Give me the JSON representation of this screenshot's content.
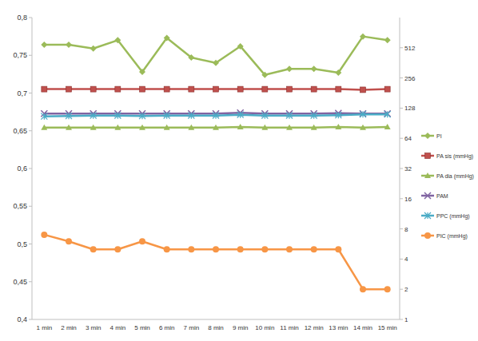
{
  "chart_data": {
    "type": "line",
    "categories": [
      "1 min",
      "2 min",
      "3 min",
      "4 min",
      "5 min",
      "6 min",
      "7 min",
      "8 min",
      "9 min",
      "10 min",
      "11 min",
      "12 min",
      "13 min",
      "14 min",
      "15 min"
    ],
    "ylim": [
      0.4,
      0.8
    ],
    "yticks": [
      {
        "value": 0.4,
        "label": "0,4"
      },
      {
        "value": 0.45,
        "label": "0,45"
      },
      {
        "value": 0.5,
        "label": "0,5"
      },
      {
        "value": 0.55,
        "label": "0,55"
      },
      {
        "value": 0.6,
        "label": "0,6"
      },
      {
        "value": 0.65,
        "label": "0,65"
      },
      {
        "value": 0.7,
        "label": "0,7"
      },
      {
        "value": 0.75,
        "label": "0,75"
      },
      {
        "value": 0.8,
        "label": "0,8"
      }
    ],
    "y2lim": [
      1,
      1024
    ],
    "y2ticks": [
      1,
      2,
      4,
      8,
      16,
      32,
      64,
      128,
      256,
      512
    ],
    "log": "y2",
    "grid": false,
    "legend": "right",
    "series": [
      {
        "name": "PI",
        "color": "#9bbb59",
        "marker": "diamond",
        "values": [
          0.764,
          0.764,
          0.759,
          0.77,
          0.728,
          0.773,
          0.747,
          0.74,
          0.762,
          0.724,
          0.732,
          0.732,
          0.727,
          0.775,
          0.77
        ]
      },
      {
        "name": "PA sis (mmHg)",
        "color": "#c0504d",
        "marker": "square",
        "axis": "y2",
        "values": [
          198,
          198,
          198,
          198,
          198,
          198,
          198,
          198,
          198,
          198,
          198,
          198,
          198,
          195,
          198
        ]
      },
      {
        "name": "PA dia (mmHg)",
        "color": "#9bbb59",
        "marker": "triangle",
        "axis": "y2",
        "values": [
          82,
          82,
          82,
          82,
          82,
          82,
          82,
          82,
          83,
          82,
          82,
          82,
          83,
          82,
          83
        ]
      },
      {
        "name": "PAM",
        "color": "#8064a2",
        "marker": "x",
        "axis": "y2",
        "values": [
          113,
          113,
          113,
          113,
          113,
          113,
          113,
          113,
          115,
          113,
          113,
          113,
          114,
          113,
          113
        ]
      },
      {
        "name": "PPC (mmHg)",
        "color": "#4bacc6",
        "marker": "star",
        "axis": "y2",
        "values": [
          106,
          107,
          108,
          108,
          107,
          108,
          108,
          108,
          110,
          108,
          108,
          108,
          109,
          111,
          111
        ]
      },
      {
        "name": "PIC (mmHg)",
        "color": "#f79646",
        "marker": "circle",
        "axis": "y2",
        "values": [
          7,
          6,
          5,
          5,
          6,
          5,
          5,
          5,
          5,
          5,
          5,
          5,
          5,
          2,
          2
        ]
      }
    ]
  }
}
